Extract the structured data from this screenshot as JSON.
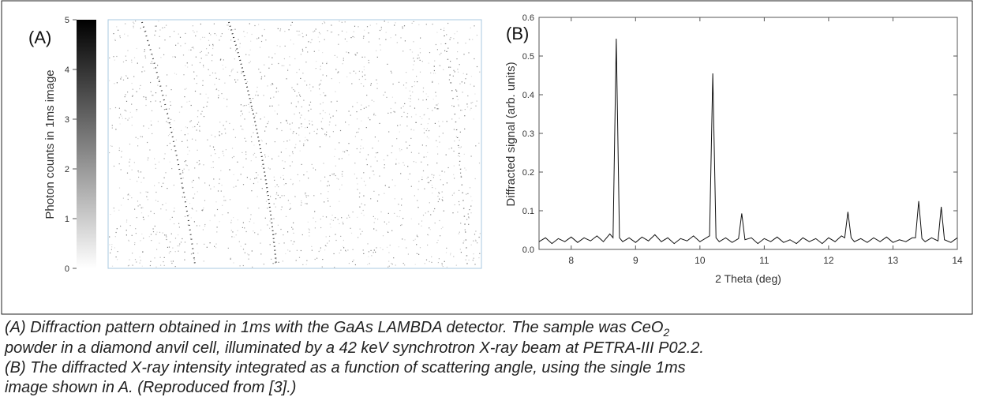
{
  "chart_data": [
    {
      "type": "image",
      "label": "(A)",
      "colorbar_label": "Photon counts in 1ms image",
      "colorbar_lim": [
        0,
        5
      ],
      "colorbar_ticks": [
        0,
        1,
        2,
        3,
        4,
        5
      ]
    },
    {
      "type": "line",
      "label": "(B)",
      "xlabel": "2 Theta (deg)",
      "ylabel": "Diffracted signal (arb. units)",
      "xlim": [
        7.5,
        14
      ],
      "xticks": [
        8,
        9,
        10,
        11,
        12,
        13,
        14
      ],
      "ylim": [
        0,
        0.6
      ],
      "yticks": [
        {
          "value": 0,
          "label": "0.0"
        },
        0.1,
        0.2,
        0.3,
        0.4,
        0.5,
        0.6
      ],
      "color": "#111111",
      "x": [
        7.5,
        7.6,
        7.7,
        7.8,
        7.9,
        8.0,
        8.1,
        8.2,
        8.3,
        8.4,
        8.5,
        8.6,
        8.65,
        8.7,
        8.75,
        8.8,
        8.9,
        9.0,
        9.1,
        9.2,
        9.3,
        9.4,
        9.5,
        9.6,
        9.7,
        9.8,
        9.9,
        10.0,
        10.1,
        10.15,
        10.2,
        10.25,
        10.3,
        10.4,
        10.5,
        10.6,
        10.65,
        10.7,
        10.8,
        10.9,
        11.0,
        11.1,
        11.2,
        11.3,
        11.4,
        11.5,
        11.6,
        11.7,
        11.8,
        11.9,
        12.0,
        12.1,
        12.2,
        12.25,
        12.3,
        12.35,
        12.4,
        12.5,
        12.6,
        12.7,
        12.8,
        12.9,
        13.0,
        13.1,
        13.2,
        13.3,
        13.35,
        13.4,
        13.45,
        13.5,
        13.6,
        13.7,
        13.75,
        13.8,
        13.9,
        14.0
      ],
      "values": [
        0.02,
        0.03,
        0.015,
        0.028,
        0.02,
        0.032,
        0.018,
        0.03,
        0.022,
        0.035,
        0.02,
        0.04,
        0.03,
        0.545,
        0.03,
        0.02,
        0.03,
        0.018,
        0.032,
        0.022,
        0.038,
        0.02,
        0.03,
        0.015,
        0.028,
        0.022,
        0.035,
        0.02,
        0.03,
        0.035,
        0.455,
        0.03,
        0.02,
        0.03,
        0.018,
        0.028,
        0.093,
        0.025,
        0.03,
        0.015,
        0.028,
        0.02,
        0.032,
        0.018,
        0.025,
        0.015,
        0.03,
        0.02,
        0.028,
        0.015,
        0.03,
        0.02,
        0.035,
        0.03,
        0.097,
        0.03,
        0.02,
        0.028,
        0.018,
        0.03,
        0.02,
        0.032,
        0.018,
        0.025,
        0.02,
        0.03,
        0.03,
        0.125,
        0.028,
        0.02,
        0.03,
        0.022,
        0.11,
        0.025,
        0.018,
        0.03
      ]
    }
  ],
  "caption": {
    "line1": "(A) Diffraction pattern obtained in 1ms with the GaAs LAMBDA detector. The sample was CeO",
    "subscript": "2",
    "lines": [
      "powder in a diamond anvil cell, illuminated by a 42 keV synchrotron X-ray beam at PETRA-III P02.2.",
      "(B) The diffracted X-ray intensity integrated as a function of scattering angle, using the single 1ms",
      "image shown in A. (Reproduced from [3].)"
    ]
  }
}
